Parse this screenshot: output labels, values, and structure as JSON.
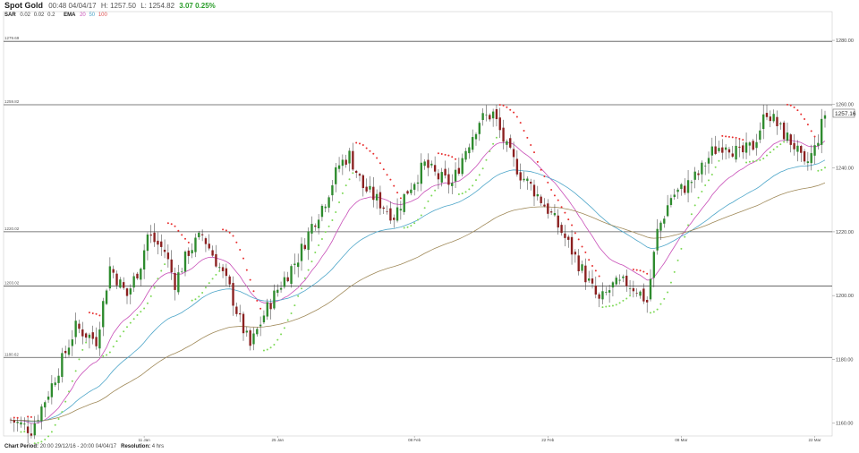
{
  "header": {
    "title": "Spot Gold",
    "time": "00:48 04/04/17",
    "high": "H: 1257.50",
    "low": "L: 1254.82",
    "change": "3.07",
    "change_pct": "0.25%",
    "sar_label": "SAR",
    "sar_params": [
      "0.02",
      "0.02",
      "0.2"
    ],
    "ema_label": "EMA",
    "ema_params": [
      "20",
      "50",
      "100"
    ]
  },
  "footer": {
    "period_label": "Chart Period:",
    "period_value": "20:00 29/12/16 - 20:00 04/04/17",
    "resolution_label": "Resolution:",
    "resolution_value": "4 hrs"
  },
  "colors": {
    "up_candle": "#2e8b2e",
    "down_candle": "#8b2020",
    "ema20": "#c84fb8",
    "ema50": "#4ea6c9",
    "ema100": "#a08a5a",
    "sar_above": "#e83030",
    "sar_below": "#7ed957",
    "hline": "#555555",
    "price_tag_border": "#666666"
  },
  "chart_data": {
    "type": "candlestick",
    "y_axis": {
      "ticks": [
        "1160.00",
        "1180.00",
        "1200.00",
        "1220.00",
        "1240.00",
        "1260.00",
        "1280.00"
      ],
      "range": [
        1156,
        1289
      ]
    },
    "x_axis": {
      "ticks": [
        "11 Jan",
        "25 Jan",
        "08 Feb",
        "22 Feb",
        "08 Mar",
        "22 Mar"
      ]
    },
    "horizontal_lines": [
      {
        "value": 1279.69,
        "label": "1279.69"
      },
      {
        "value": 1259.82,
        "label": "1259.82"
      },
      {
        "value": 1220.02,
        "label": "1220.02"
      },
      {
        "value": 1203.02,
        "label": "1203.02"
      },
      {
        "value": 1180.62,
        "label": "1180.62"
      }
    ],
    "last_price": "1257.16",
    "close_path": [
      [
        0,
        1161
      ],
      [
        6,
        1158
      ],
      [
        12,
        1172
      ],
      [
        19,
        1190
      ],
      [
        25,
        1186
      ],
      [
        29,
        1209
      ],
      [
        34,
        1200
      ],
      [
        38,
        1210
      ],
      [
        40,
        1219
      ],
      [
        45,
        1214
      ],
      [
        48,
        1204
      ],
      [
        52,
        1214
      ],
      [
        56,
        1219
      ],
      [
        60,
        1211
      ],
      [
        64,
        1202
      ],
      [
        67,
        1192
      ],
      [
        70,
        1184
      ],
      [
        74,
        1194
      ],
      [
        78,
        1202
      ],
      [
        84,
        1212
      ],
      [
        88,
        1222
      ],
      [
        92,
        1230
      ],
      [
        96,
        1241
      ],
      [
        99,
        1244
      ],
      [
        103,
        1234
      ],
      [
        108,
        1229
      ],
      [
        112,
        1225
      ],
      [
        116,
        1233
      ],
      [
        121,
        1241
      ],
      [
        125,
        1237
      ],
      [
        129,
        1235
      ],
      [
        133,
        1246
      ],
      [
        137,
        1255
      ],
      [
        141,
        1257
      ],
      [
        145,
        1246
      ],
      [
        149,
        1238
      ],
      [
        153,
        1233
      ],
      [
        157,
        1227
      ],
      [
        161,
        1220
      ],
      [
        165,
        1212
      ],
      [
        169,
        1204
      ],
      [
        172,
        1198
      ],
      [
        176,
        1203
      ],
      [
        180,
        1204
      ],
      [
        183,
        1202
      ],
      [
        186,
        1198
      ],
      [
        189,
        1220
      ],
      [
        193,
        1231
      ],
      [
        197,
        1234
      ],
      [
        201,
        1238
      ],
      [
        205,
        1245
      ],
      [
        209,
        1248
      ],
      [
        213,
        1244
      ],
      [
        217,
        1247
      ],
      [
        221,
        1258
      ],
      [
        225,
        1252
      ],
      [
        229,
        1247
      ],
      [
        232,
        1240
      ],
      [
        235,
        1246
      ],
      [
        238,
        1257
      ]
    ],
    "n_candles": 239,
    "series": [
      {
        "name": "SAR",
        "type": "dots"
      },
      {
        "name": "EMA 20",
        "type": "line"
      },
      {
        "name": "EMA 50",
        "type": "line"
      },
      {
        "name": "EMA 100",
        "type": "line"
      }
    ]
  }
}
